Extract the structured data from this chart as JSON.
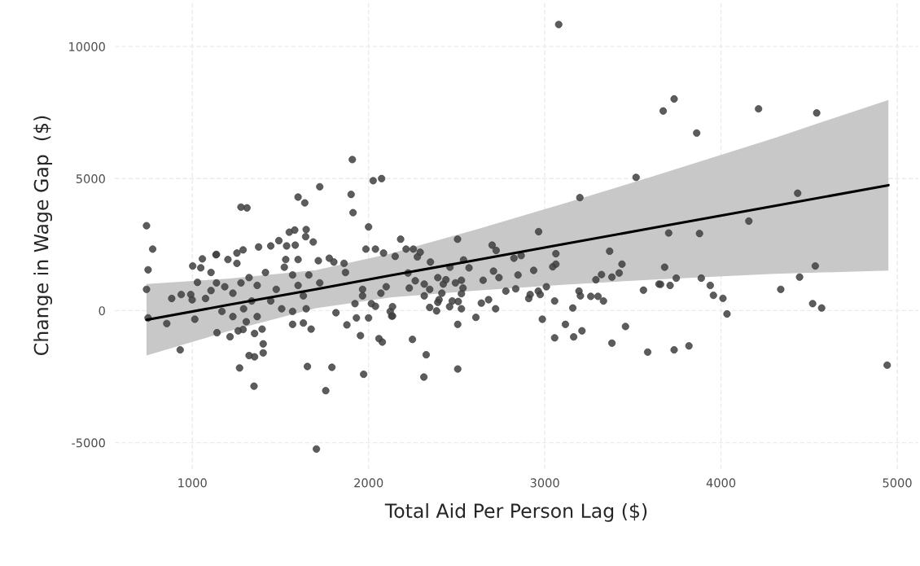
{
  "chart_data": {
    "type": "scatter",
    "xlabel": "Total Aid Per Person Lag ($)",
    "ylabel": "Change in Wage Gap  ($)",
    "xlim": [
      560,
      5120
    ],
    "ylim": [
      -6000,
      11700
    ],
    "xticks": [
      1000,
      2000,
      3000,
      4000,
      5000
    ],
    "yticks": [
      -5000,
      0,
      5000,
      10000
    ],
    "grid": true,
    "legend": false,
    "series": [
      {
        "marker": "circle",
        "color": "#404040",
        "x": [
          740,
          775,
          1276,
          1310,
          1600,
          1638,
          1723,
          1908,
          1901,
          1912,
          2026,
          2074,
          2000,
          1985,
          2039,
          2085,
          1550,
          1581,
          1646,
          1643,
          1686,
          1491,
          1445,
          1376,
          1535,
          1584,
          1288,
          1253,
          1134,
          1057,
          749,
          740,
          749,
          855,
          931,
          883,
          937,
          991,
          999,
          1014,
          1029,
          1002,
          1048,
          1137,
          1202,
          1253,
          1140,
          1214,
          1268,
          1350,
          1322,
          1353,
          1402,
          1402,
          1260,
          1288,
          1353,
          1396,
          1653,
          1792,
          1757,
          1972,
          1704,
          1674,
          1569,
          1630,
          1954,
          2059,
          2078,
          2000,
          1931,
          1877,
          1815,
          2151,
          2100,
          2070,
          1966,
          1966,
          2016,
          2039,
          2123,
          2131,
          1923,
          1861,
          1869,
          1803,
          1777,
          1715,
          1106,
          1137,
          1184,
          1230,
          1276,
          1322,
          1368,
          1415,
          1530,
          1569,
          1600,
          1661,
          1723,
          1476,
          1507,
          1569,
          1646,
          1368,
          1306,
          1230,
          1168,
          1075,
          1106,
          1337,
          1445,
          1522,
          1600,
          1630,
          1291,
          2182,
          2505,
          2213,
          2254,
          2293,
          2277,
          2351,
          2224,
          2265,
          2231,
          2316,
          2347,
          2316,
          2393,
          2439,
          2424,
          2493,
          2527,
          2536,
          2527,
          2416,
          2400,
          2393,
          2347,
          2386,
          2460,
          2475,
          2509,
          2527,
          2506,
          2609,
          2249,
          2327,
          2314,
          2506,
          2136,
          2136,
          2462,
          2570,
          2539,
          2701,
          2724,
          2825,
          2866,
          2709,
          2740,
          2650,
          2640,
          2681,
          2721,
          2779,
          2835,
          2848,
          2937,
          2909,
          2917,
          2963,
          2974,
          3009,
          2986,
          3056,
          3045,
          3063,
          3063,
          2965,
          3056,
          3117,
          3159,
          3164,
          3211,
          3194,
          3202,
          3261,
          3302,
          3333,
          3290,
          3322,
          3381,
          3422,
          3438,
          3368,
          3458,
          3381,
          3560,
          3584,
          3648,
          3079,
          3199,
          3518,
          3734,
          3672,
          3862,
          4213,
          4543,
          4435,
          4158,
          3703,
          3878,
          3680,
          3746,
          3657,
          3711,
          3888,
          3939,
          3957,
          4011,
          4034,
          4339,
          4446,
          4535,
          4520,
          4571,
          3734,
          3818,
          4943
        ],
        "values": [
          3215,
          2330,
          3920,
          3890,
          4300,
          4080,
          4690,
          5720,
          4400,
          3710,
          4920,
          5000,
          3170,
          2330,
          2330,
          2180,
          2970,
          3050,
          3070,
          2800,
          2600,
          2650,
          2450,
          2410,
          2450,
          2480,
          2300,
          2180,
          2115,
          1960,
          1545,
          805,
          -275,
          -490,
          -1485,
          460,
          610,
          610,
          410,
          -325,
          1070,
          1690,
          1620,
          2130,
          1935,
          1790,
          -835,
          -990,
          -2170,
          -2860,
          -1700,
          -1750,
          -1260,
          -1600,
          -765,
          -715,
          -865,
          -700,
          -2115,
          -2145,
          -3030,
          -2410,
          -5240,
          -700,
          -520,
          -470,
          -945,
          -1060,
          -1190,
          -275,
          -275,
          -540,
          -80,
          2055,
          905,
          660,
          805,
          560,
          265,
          165,
          -30,
          -205,
          265,
          1790,
          1445,
          1840,
          1985,
          1890,
          1445,
          1050,
          905,
          660,
          1050,
          1250,
          955,
          1445,
          1935,
          1350,
          955,
          1350,
          1050,
          805,
          70,
          -30,
          70,
          -225,
          -420,
          -225,
          -30,
          460,
          760,
          365,
          365,
          1645,
          1935,
          560,
          70,
          2705,
          2705,
          2330,
          2330,
          2210,
          2035,
          1840,
          1425,
          1130,
          855,
          1005,
          805,
          560,
          1250,
          1170,
          1005,
          1050,
          1150,
          855,
          640,
          660,
          415,
          315,
          120,
          -10,
          150,
          365,
          345,
          70,
          -520,
          -255,
          -1090,
          -1670,
          -2515,
          -2210,
          150,
          -205,
          1645,
          1620,
          1920,
          2480,
          2280,
          1985,
          2085,
          1495,
          1250,
          1150,
          285,
          415,
          70,
          740,
          825,
          1350,
          1525,
          460,
          610,
          740,
          610,
          905,
          -325,
          365,
          1660,
          1760,
          2155,
          2990,
          -1030,
          -520,
          100,
          -995,
          -765,
          740,
          560,
          540,
          540,
          365,
          1170,
          1365,
          1270,
          1425,
          1760,
          2250,
          -600,
          -1230,
          775,
          -1570,
          1005,
          10835,
          4280,
          5045,
          8015,
          7560,
          6725,
          7640,
          7485,
          4445,
          3390,
          2940,
          2920,
          1645,
          1230,
          995,
          955,
          1230,
          955,
          580,
          465,
          -125,
          805,
          1270,
          1690,
          265,
          100,
          -1485,
          -1335,
          -2065
        ]
      },
      {
        "type": "line",
        "marker": "none",
        "color": "#000000",
        "x": [
          740,
          1200,
          1700,
          2123,
          2600,
          3100,
          3603,
          4300,
          4950
        ],
        "values": [
          -350,
          210,
          810,
          1330,
          1900,
          2510,
          3120,
          3960,
          4750
        ],
        "lower": [
          -1700,
          -790,
          90,
          500,
          750,
          980,
          1170,
          1390,
          1520
        ],
        "upper": [
          1010,
          1210,
          1530,
          2160,
          3050,
          4040,
          5060,
          6530,
          7980
        ]
      }
    ]
  }
}
